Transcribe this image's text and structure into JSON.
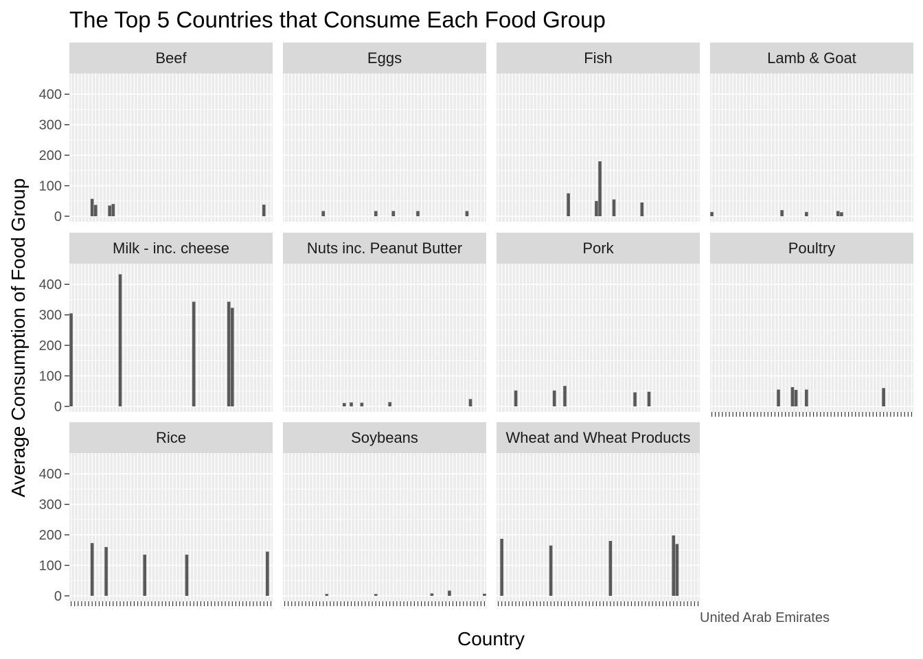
{
  "chart_data": {
    "type": "bar",
    "title": "The Top 5 Countries that Consume Each Food Group",
    "xlabel": "Country",
    "ylabel": "Average Consumption of Food Group",
    "ylim": [
      0,
      450
    ],
    "yticks": [
      0,
      100,
      200,
      300,
      400
    ],
    "grid": true,
    "n_categories": 58,
    "visible_category_labels": [
      "United Arab Emirates"
    ],
    "panels": [
      {
        "name": "Beef",
        "bars": [
          {
            "i": 6,
            "v": 57
          },
          {
            "i": 7,
            "v": 37
          },
          {
            "i": 11,
            "v": 35
          },
          {
            "i": 12,
            "v": 40
          },
          {
            "i": 55,
            "v": 38
          }
        ]
      },
      {
        "name": "Eggs",
        "bars": [
          {
            "i": 11,
            "v": 17
          },
          {
            "i": 26,
            "v": 17
          },
          {
            "i": 31,
            "v": 17
          },
          {
            "i": 38,
            "v": 17
          },
          {
            "i": 52,
            "v": 17
          }
        ]
      },
      {
        "name": "Fish",
        "bars": [
          {
            "i": 20,
            "v": 75
          },
          {
            "i": 28,
            "v": 50
          },
          {
            "i": 29,
            "v": 180
          },
          {
            "i": 33,
            "v": 55
          },
          {
            "i": 41,
            "v": 45
          }
        ]
      },
      {
        "name": "Lamb & Goat",
        "bars": [
          {
            "i": 0,
            "v": 14
          },
          {
            "i": 20,
            "v": 20
          },
          {
            "i": 27,
            "v": 14
          },
          {
            "i": 36,
            "v": 17
          },
          {
            "i": 37,
            "v": 13
          }
        ]
      },
      {
        "name": "Milk - inc. cheese",
        "bars": [
          {
            "i": 0,
            "v": 305
          },
          {
            "i": 14,
            "v": 433
          },
          {
            "i": 35,
            "v": 343
          },
          {
            "i": 45,
            "v": 343
          },
          {
            "i": 46,
            "v": 323
          }
        ]
      },
      {
        "name": "Nuts inc. Peanut Butter",
        "bars": [
          {
            "i": 17,
            "v": 11
          },
          {
            "i": 19,
            "v": 13
          },
          {
            "i": 22,
            "v": 12
          },
          {
            "i": 30,
            "v": 14
          },
          {
            "i": 53,
            "v": 24
          }
        ]
      },
      {
        "name": "Pork",
        "bars": [
          {
            "i": 5,
            "v": 52
          },
          {
            "i": 16,
            "v": 52
          },
          {
            "i": 19,
            "v": 67
          },
          {
            "i": 39,
            "v": 46
          },
          {
            "i": 43,
            "v": 48
          }
        ]
      },
      {
        "name": "Poultry",
        "bars": [
          {
            "i": 19,
            "v": 55
          },
          {
            "i": 23,
            "v": 63
          },
          {
            "i": 24,
            "v": 54
          },
          {
            "i": 27,
            "v": 55
          },
          {
            "i": 49,
            "v": 60
          }
        ]
      },
      {
        "name": "Rice",
        "bars": [
          {
            "i": 6,
            "v": 173
          },
          {
            "i": 10,
            "v": 160
          },
          {
            "i": 21,
            "v": 135
          },
          {
            "i": 33,
            "v": 135
          },
          {
            "i": 56,
            "v": 145
          }
        ]
      },
      {
        "name": "Soybeans",
        "bars": [
          {
            "i": 12,
            "v": 6
          },
          {
            "i": 26,
            "v": 6
          },
          {
            "i": 42,
            "v": 8
          },
          {
            "i": 47,
            "v": 17
          },
          {
            "i": 57,
            "v": 7
          }
        ]
      },
      {
        "name": "Wheat and Wheat Products",
        "bars": [
          {
            "i": 1,
            "v": 187
          },
          {
            "i": 15,
            "v": 165
          },
          {
            "i": 32,
            "v": 180
          },
          {
            "i": 50,
            "v": 198
          },
          {
            "i": 51,
            "v": 170
          }
        ]
      }
    ]
  }
}
